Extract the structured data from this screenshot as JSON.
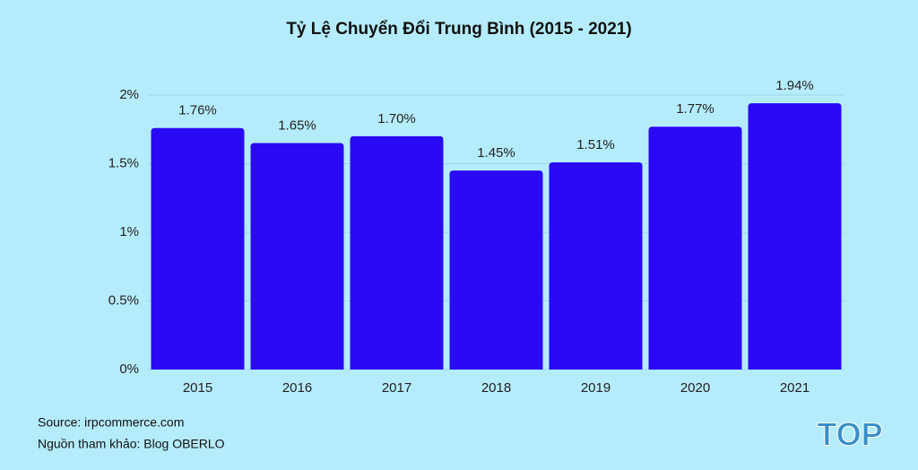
{
  "chart_data": {
    "type": "bar",
    "title": "Tỷ Lệ Chuyển Đổi Trung Bình (2015 - 2021)",
    "categories": [
      "2015",
      "2016",
      "2017",
      "2018",
      "2019",
      "2020",
      "2021"
    ],
    "values": [
      1.76,
      1.65,
      1.7,
      1.45,
      1.51,
      1.77,
      1.94
    ],
    "value_labels": [
      "1.76%",
      "1.65%",
      "1.70%",
      "1.45%",
      "1.51%",
      "1.77%",
      "1.94%"
    ],
    "color": "#2a0af5",
    "ylim": [
      0,
      2
    ],
    "yticks": [
      {
        "value": 0,
        "label": "0%"
      },
      {
        "value": 0.5,
        "label": "0.5%"
      },
      {
        "value": 1,
        "label": "1%"
      },
      {
        "value": 1.5,
        "label": "1.5%"
      },
      {
        "value": 2,
        "label": "2%"
      }
    ],
    "grid": true,
    "notes": [
      "Source: irpcommerce.com",
      "Nguồn tham khảo: Blog OBERLO"
    ],
    "logo": "TOP"
  }
}
